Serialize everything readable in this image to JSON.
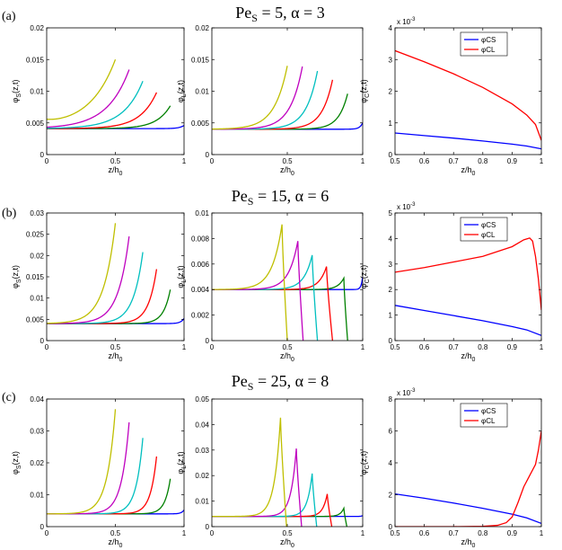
{
  "figure": {
    "rows": [
      {
        "label": "(a)",
        "title": "Pe",
        "title_sub": "S",
        "title_rest": " = 5, α = 3"
      },
      {
        "label": "(b)",
        "title": "Pe",
        "title_sub": "S",
        "title_rest": " = 15, α = 6"
      },
      {
        "label": "(c)",
        "title": "Pe",
        "title_sub": "S",
        "title_rest": " = 25, α = 8"
      }
    ]
  },
  "chart_data": [
    {
      "id": "a1",
      "type": "line",
      "row": 0,
      "col": 0,
      "title": "",
      "xlabel": "z/h",
      "xlabel_sub": "0",
      "ylabel": "φ",
      "ylabel_sub": "S",
      "ylabel_rest": "(z,t)",
      "xlim": [
        0,
        1
      ],
      "ylim": [
        0,
        0.02
      ],
      "xticks": [
        "0",
        "0.5",
        "1"
      ],
      "yticks": [
        "0",
        "0.005",
        "0.01",
        "0.015",
        "0.02"
      ],
      "sci": "",
      "series": [
        {
          "name": "blue",
          "color": "#0000ff",
          "kind": "exp",
          "front": 1.0,
          "base": 0.0041,
          "peak": 0.0046,
          "decay": 0.035
        },
        {
          "name": "green",
          "color": "#008000",
          "kind": "exp",
          "front": 0.9,
          "base": 0.0041,
          "peak": 0.0077,
          "decay": 0.1
        },
        {
          "name": "red",
          "color": "#ff0000",
          "kind": "exp",
          "front": 0.8,
          "base": 0.0041,
          "peak": 0.0098,
          "decay": 0.12
        },
        {
          "name": "cyan",
          "color": "#00bfbf",
          "kind": "exp",
          "front": 0.7,
          "base": 0.0041,
          "peak": 0.0116,
          "decay": 0.14
        },
        {
          "name": "magenta",
          "color": "#bf00bf",
          "kind": "exp",
          "front": 0.6,
          "base": 0.0041,
          "peak": 0.0134,
          "decay": 0.16
        },
        {
          "name": "yellow",
          "color": "#bfbf00",
          "kind": "exp",
          "front": 0.5,
          "base": 0.0041,
          "peak": 0.015,
          "decay": 0.19,
          "start": 0.0048
        }
      ]
    },
    {
      "id": "a2",
      "type": "line",
      "row": 0,
      "col": 1,
      "title": "",
      "xlabel": "z/h",
      "xlabel_sub": "0",
      "ylabel": "φ",
      "ylabel_sub": "L",
      "ylabel_rest": "(z,t)",
      "xlim": [
        0,
        1
      ],
      "ylim": [
        0,
        0.02
      ],
      "xticks": [
        "0",
        "0.5",
        "1"
      ],
      "yticks": [
        "0",
        "0.005",
        "0.01",
        "0.015",
        "0.02"
      ],
      "sci": "",
      "series": [
        {
          "name": "blue",
          "color": "#0000ff",
          "kind": "exp",
          "front": 1.0,
          "base": 0.004,
          "peak": 0.005,
          "decay": 0.02
        },
        {
          "name": "green",
          "color": "#008000",
          "kind": "exp",
          "front": 0.9,
          "base": 0.004,
          "peak": 0.0096,
          "decay": 0.06
        },
        {
          "name": "red",
          "color": "#ff0000",
          "kind": "exp",
          "front": 0.8,
          "base": 0.004,
          "peak": 0.0118,
          "decay": 0.07
        },
        {
          "name": "cyan",
          "color": "#00bfbf",
          "kind": "exp",
          "front": 0.7,
          "base": 0.004,
          "peak": 0.0132,
          "decay": 0.075
        },
        {
          "name": "magenta",
          "color": "#bf00bf",
          "kind": "exp",
          "front": 0.6,
          "base": 0.004,
          "peak": 0.0139,
          "decay": 0.08
        },
        {
          "name": "yellow",
          "color": "#bfbf00",
          "kind": "exp",
          "front": 0.5,
          "base": 0.004,
          "peak": 0.014,
          "decay": 0.085
        }
      ]
    },
    {
      "id": "a3",
      "type": "line",
      "row": 0,
      "col": 2,
      "title": "",
      "xlabel": "z/h",
      "xlabel_sub": "0",
      "ylabel": "φ",
      "ylabel_sub": "C",
      "ylabel_rest": "(z,t)",
      "xlim": [
        0.5,
        1
      ],
      "ylim": [
        0,
        4
      ],
      "xticks": [
        "0.5",
        "0.6",
        "0.7",
        "0.8",
        "0.9",
        "1"
      ],
      "yticks": [
        "0",
        "1",
        "2",
        "3",
        "4"
      ],
      "sci": "x 10",
      "sci_exp": "-3",
      "legend": [
        "φCS",
        "φCL"
      ],
      "legend_pos": "top-right",
      "series": [
        {
          "name": "φCS",
          "color": "#0000ff",
          "kind": "pts",
          "x": [
            0.5,
            0.6,
            0.7,
            0.8,
            0.9,
            0.95,
            1.0
          ],
          "y": [
            0.68,
            0.6,
            0.52,
            0.43,
            0.33,
            0.27,
            0.18
          ]
        },
        {
          "name": "φCL",
          "color": "#ff0000",
          "kind": "pts",
          "x": [
            0.5,
            0.6,
            0.7,
            0.8,
            0.9,
            0.95,
            0.98,
            1.0
          ],
          "y": [
            3.28,
            2.93,
            2.55,
            2.12,
            1.6,
            1.25,
            0.95,
            0.45
          ]
        }
      ]
    },
    {
      "id": "b1",
      "type": "line",
      "row": 1,
      "col": 0,
      "title": "",
      "xlabel": "z/h",
      "xlabel_sub": "0",
      "ylabel": "φ",
      "ylabel_sub": "S",
      "ylabel_rest": "(z,t)",
      "xlim": [
        0,
        1
      ],
      "ylim": [
        0,
        0.03
      ],
      "xticks": [
        "0",
        "0.5",
        "1"
      ],
      "yticks": [
        "0",
        "0.005",
        "0.01",
        "0.015",
        "0.02",
        "0.025",
        "0.03"
      ],
      "sci": "",
      "series": [
        {
          "name": "blue",
          "color": "#0000ff",
          "kind": "exp",
          "front": 1.0,
          "base": 0.004,
          "peak": 0.0052,
          "decay": 0.025
        },
        {
          "name": "green",
          "color": "#008000",
          "kind": "exp",
          "front": 0.9,
          "base": 0.004,
          "peak": 0.012,
          "decay": 0.05
        },
        {
          "name": "red",
          "color": "#ff0000",
          "kind": "exp",
          "front": 0.8,
          "base": 0.004,
          "peak": 0.0168,
          "decay": 0.06
        },
        {
          "name": "cyan",
          "color": "#00bfbf",
          "kind": "exp",
          "front": 0.7,
          "base": 0.004,
          "peak": 0.0208,
          "decay": 0.07
        },
        {
          "name": "magenta",
          "color": "#bf00bf",
          "kind": "exp",
          "front": 0.6,
          "base": 0.004,
          "peak": 0.0245,
          "decay": 0.08
        },
        {
          "name": "yellow",
          "color": "#bfbf00",
          "kind": "exp",
          "front": 0.5,
          "base": 0.004,
          "peak": 0.0276,
          "decay": 0.085
        }
      ]
    },
    {
      "id": "b2",
      "type": "line",
      "row": 1,
      "col": 1,
      "title": "",
      "xlabel": "z/h",
      "xlabel_sub": "0",
      "ylabel": "φ",
      "ylabel_sub": "L",
      "ylabel_rest": "(z,t)",
      "xlim": [
        0,
        1
      ],
      "ylim": [
        0,
        0.01
      ],
      "xticks": [
        "0",
        "0.5",
        "1"
      ],
      "yticks": [
        "0",
        "0.002",
        "0.004",
        "0.006",
        "0.008",
        "0.01"
      ],
      "sci": "",
      "series": [
        {
          "name": "blue",
          "color": "#0000ff",
          "kind": "exp",
          "front": 1.0,
          "base": 0.004,
          "peak": 0.005,
          "decay": 0.01
        },
        {
          "name": "green",
          "color": "#008000",
          "kind": "peak",
          "front": 0.9,
          "base": 0.004,
          "peak": 0.0049,
          "pz": 0.875,
          "rise": 0.04,
          "drop": 0.9
        },
        {
          "name": "red",
          "color": "#ff0000",
          "kind": "peak",
          "front": 0.8,
          "base": 0.004,
          "peak": 0.0058,
          "pz": 0.76,
          "rise": 0.05,
          "drop": 0.8
        },
        {
          "name": "cyan",
          "color": "#00bfbf",
          "kind": "peak",
          "front": 0.7,
          "base": 0.004,
          "peak": 0.0067,
          "pz": 0.665,
          "rise": 0.055,
          "drop": 0.7
        },
        {
          "name": "magenta",
          "color": "#bf00bf",
          "kind": "peak",
          "front": 0.6,
          "base": 0.004,
          "peak": 0.0078,
          "pz": 0.57,
          "rise": 0.06,
          "drop": 0.605
        },
        {
          "name": "yellow",
          "color": "#bfbf00",
          "kind": "peak",
          "front": 0.5,
          "base": 0.004,
          "peak": 0.0091,
          "pz": 0.465,
          "rise": 0.065,
          "drop": 0.5
        }
      ]
    },
    {
      "id": "b3",
      "type": "line",
      "row": 1,
      "col": 2,
      "title": "",
      "xlabel": "z/h",
      "xlabel_sub": "0",
      "ylabel": "φ",
      "ylabel_sub": "C",
      "ylabel_rest": "(z,t)",
      "xlim": [
        0.5,
        1
      ],
      "ylim": [
        0,
        5
      ],
      "xticks": [
        "0.5",
        "0.6",
        "0.7",
        "0.8",
        "0.9",
        "1"
      ],
      "yticks": [
        "0",
        "1",
        "2",
        "3",
        "4",
        "5"
      ],
      "sci": "x 10",
      "sci_exp": "-3",
      "legend": [
        "φCS",
        "φCL"
      ],
      "legend_pos": "top-right",
      "series": [
        {
          "name": "φCS",
          "color": "#0000ff",
          "kind": "pts",
          "x": [
            0.5,
            0.6,
            0.7,
            0.8,
            0.9,
            0.95,
            1.0
          ],
          "y": [
            1.38,
            1.18,
            0.98,
            0.78,
            0.55,
            0.42,
            0.2
          ]
        },
        {
          "name": "φCL",
          "color": "#ff0000",
          "kind": "pts",
          "x": [
            0.5,
            0.6,
            0.7,
            0.8,
            0.9,
            0.94,
            0.96,
            0.97,
            0.98,
            0.99,
            1.0
          ],
          "y": [
            2.68,
            2.86,
            3.08,
            3.3,
            3.68,
            3.95,
            4.02,
            3.9,
            3.3,
            2.4,
            1.2
          ]
        }
      ]
    },
    {
      "id": "c1",
      "type": "line",
      "row": 2,
      "col": 0,
      "title": "",
      "xlabel": "z/h",
      "xlabel_sub": "0",
      "ylabel": "φ",
      "ylabel_sub": "S",
      "ylabel_rest": "(z,t)",
      "xlim": [
        0,
        1
      ],
      "ylim": [
        0,
        0.04
      ],
      "xticks": [
        "0",
        "0.5",
        "1"
      ],
      "yticks": [
        "0",
        "0.01",
        "0.02",
        "0.03",
        "0.04"
      ],
      "sci": "",
      "series": [
        {
          "name": "blue",
          "color": "#0000ff",
          "kind": "exp",
          "front": 1.0,
          "base": 0.004,
          "peak": 0.0052,
          "decay": 0.02
        },
        {
          "name": "green",
          "color": "#008000",
          "kind": "exp",
          "front": 0.9,
          "base": 0.004,
          "peak": 0.015,
          "decay": 0.04
        },
        {
          "name": "red",
          "color": "#ff0000",
          "kind": "exp",
          "front": 0.8,
          "base": 0.004,
          "peak": 0.022,
          "decay": 0.045
        },
        {
          "name": "cyan",
          "color": "#00bfbf",
          "kind": "exp",
          "front": 0.7,
          "base": 0.004,
          "peak": 0.0278,
          "decay": 0.05
        },
        {
          "name": "magenta",
          "color": "#bf00bf",
          "kind": "exp",
          "front": 0.6,
          "base": 0.004,
          "peak": 0.0327,
          "decay": 0.055
        },
        {
          "name": "yellow",
          "color": "#bfbf00",
          "kind": "exp",
          "front": 0.5,
          "base": 0.004,
          "peak": 0.0368,
          "decay": 0.06
        }
      ]
    },
    {
      "id": "c2",
      "type": "line",
      "row": 2,
      "col": 1,
      "title": "",
      "xlabel": "z/h",
      "xlabel_sub": "0",
      "ylabel": "φ",
      "ylabel_sub": "L",
      "ylabel_rest": "(z,t)",
      "xlim": [
        0,
        1
      ],
      "ylim": [
        0,
        0.05
      ],
      "xticks": [
        "0",
        "0.5",
        "1"
      ],
      "yticks": [
        "0",
        "0.01",
        "0.02",
        "0.03",
        "0.04",
        "0.05"
      ],
      "sci": "",
      "series": [
        {
          "name": "blue",
          "color": "#0000ff",
          "kind": "exp",
          "front": 1.0,
          "base": 0.004,
          "peak": 0.0043,
          "decay": 0.01
        },
        {
          "name": "green",
          "color": "#008000",
          "kind": "peak",
          "front": 0.9,
          "base": 0.004,
          "peak": 0.0072,
          "pz": 0.875,
          "rise": 0.025,
          "drop": 0.895
        },
        {
          "name": "red",
          "color": "#ff0000",
          "kind": "peak",
          "front": 0.8,
          "base": 0.004,
          "peak": 0.0128,
          "pz": 0.765,
          "rise": 0.03,
          "drop": 0.795
        },
        {
          "name": "cyan",
          "color": "#00bfbf",
          "kind": "peak",
          "front": 0.7,
          "base": 0.004,
          "peak": 0.0208,
          "pz": 0.665,
          "rise": 0.033,
          "drop": 0.695
        },
        {
          "name": "magenta",
          "color": "#bf00bf",
          "kind": "peak",
          "front": 0.6,
          "base": 0.004,
          "peak": 0.0306,
          "pz": 0.56,
          "rise": 0.036,
          "drop": 0.595
        },
        {
          "name": "yellow",
          "color": "#bfbf00",
          "kind": "peak",
          "front": 0.5,
          "base": 0.004,
          "peak": 0.0427,
          "pz": 0.455,
          "rise": 0.04,
          "drop": 0.495
        }
      ]
    },
    {
      "id": "c3",
      "type": "line",
      "row": 2,
      "col": 2,
      "title": "",
      "xlabel": "z/h",
      "xlabel_sub": "0",
      "ylabel": "φ",
      "ylabel_sub": "C",
      "ylabel_rest": "(z,t)",
      "xlim": [
        0.5,
        1
      ],
      "ylim": [
        0,
        8
      ],
      "xticks": [
        "0.5",
        "0.6",
        "0.7",
        "0.8",
        "0.9",
        "1"
      ],
      "yticks": [
        "0",
        "2",
        "4",
        "6",
        "8"
      ],
      "sci": "x 10",
      "sci_exp": "-3",
      "legend": [
        "φCS",
        "φCL"
      ],
      "legend_pos": "top-right",
      "series": [
        {
          "name": "φCS",
          "color": "#0000ff",
          "kind": "pts",
          "x": [
            0.5,
            0.6,
            0.7,
            0.8,
            0.9,
            0.95,
            1.0
          ],
          "y": [
            2.05,
            1.78,
            1.48,
            1.15,
            0.78,
            0.55,
            0.2
          ]
        },
        {
          "name": "φCL",
          "color": "#ff0000",
          "kind": "pts",
          "x": [
            0.5,
            0.7,
            0.8,
            0.85,
            0.88,
            0.9,
            0.92,
            0.94,
            0.96,
            0.98,
            0.99,
            1.0
          ],
          "y": [
            0.0,
            0.0,
            0.02,
            0.08,
            0.25,
            0.6,
            1.5,
            2.5,
            3.2,
            3.9,
            4.8,
            6.0
          ]
        }
      ]
    }
  ]
}
